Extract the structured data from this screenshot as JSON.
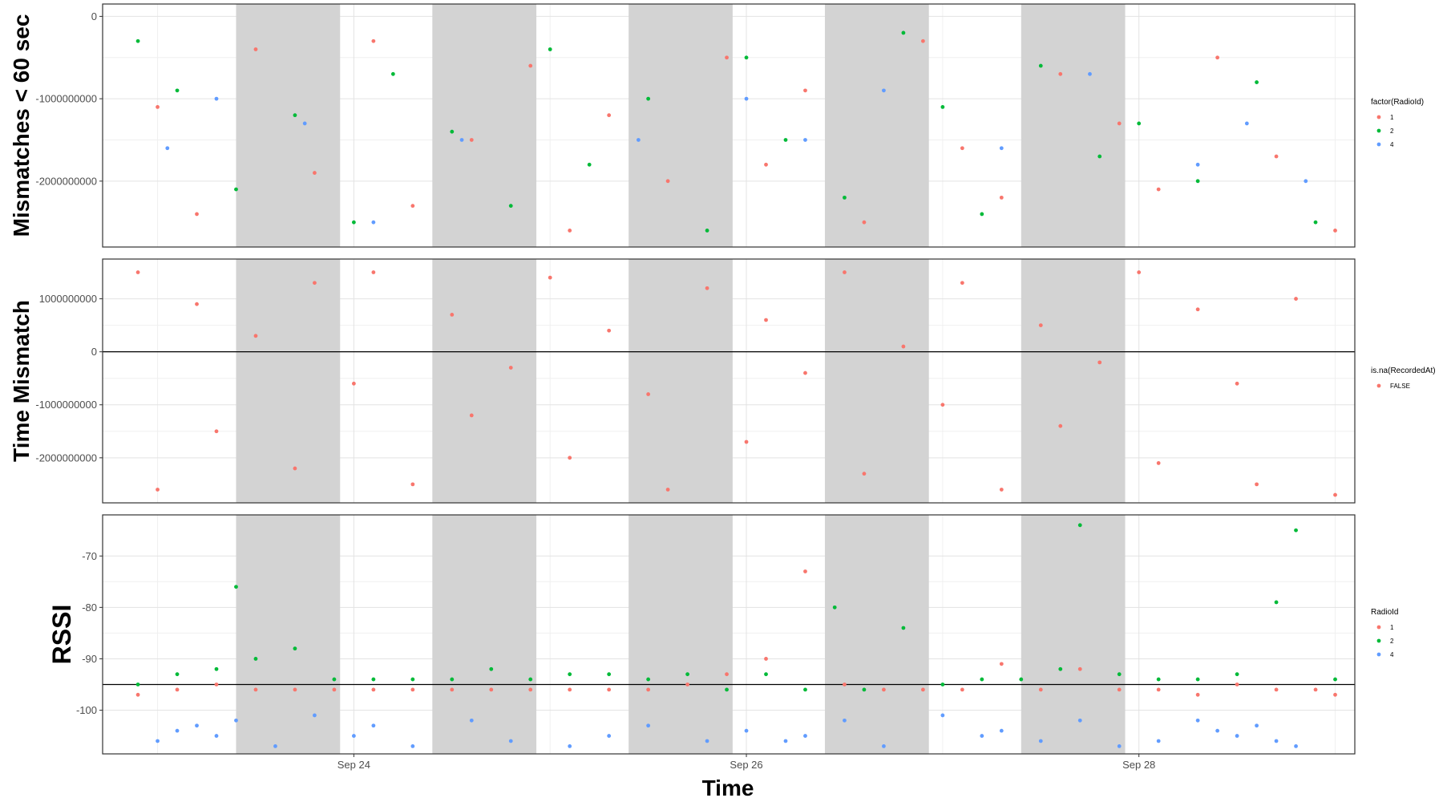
{
  "chart_data": {
    "type": "scatter",
    "xlabel": "Time",
    "x_ticks": [
      "Sep 24",
      "Sep 26",
      "Sep 28"
    ],
    "x_range_days": [
      22.72,
      29.1
    ],
    "night_bands": [
      [
        23.4,
        23.93
      ],
      [
        24.4,
        24.93
      ],
      [
        25.4,
        25.93
      ],
      [
        26.4,
        26.93
      ],
      [
        27.4,
        27.93
      ]
    ],
    "grid": true,
    "panels": [
      {
        "id": "mismatch60",
        "ylabel": "Mismatches < 60 sec",
        "ylim": [
          -2800000000,
          150000000
        ],
        "y_ticks": [
          0,
          -1000000000,
          -2000000000
        ],
        "y_tick_labels": [
          "0",
          "-1000000000",
          "-2000000000"
        ],
        "hline": null,
        "legend": {
          "title": "factor(RadioId)",
          "items": [
            {
              "label": "1",
              "color": "#F8766D"
            },
            {
              "label": "2",
              "color": "#00BA38"
            },
            {
              "label": "4",
              "color": "#619CFF"
            }
          ]
        },
        "series": [
          {
            "name": "1",
            "color": "#F8766D",
            "x": [
              23.0,
              23.2,
              23.5,
              23.8,
              24.1,
              24.3,
              24.6,
              24.9,
              25.1,
              25.3,
              25.6,
              25.9,
              26.1,
              26.3,
              26.6,
              26.9,
              27.1,
              27.3,
              27.6,
              27.9,
              28.1,
              28.4,
              28.7,
              29.0
            ],
            "y": [
              -1100000000,
              -2400000000,
              -400000000,
              -1900000000,
              -300000000,
              -2300000000,
              -1500000000,
              -600000000,
              -2600000000,
              -1200000000,
              -2000000000,
              -500000000,
              -1800000000,
              -900000000,
              -2500000000,
              -300000000,
              -1600000000,
              -2200000000,
              -700000000,
              -1300000000,
              -2100000000,
              -500000000,
              -1700000000,
              -2600000000
            ]
          },
          {
            "name": "2",
            "color": "#00BA38",
            "x": [
              22.9,
              23.1,
              23.4,
              23.7,
              24.0,
              24.2,
              24.5,
              24.8,
              25.0,
              25.2,
              25.5,
              25.8,
              26.0,
              26.2,
              26.5,
              26.8,
              27.0,
              27.2,
              27.5,
              27.8,
              28.0,
              28.3,
              28.6,
              28.9
            ],
            "y": [
              -300000000,
              -900000000,
              -2100000000,
              -1200000000,
              -2500000000,
              -700000000,
              -1400000000,
              -2300000000,
              -400000000,
              -1800000000,
              -1000000000,
              -2600000000,
              -500000000,
              -1500000000,
              -2200000000,
              -200000000,
              -1100000000,
              -2400000000,
              -600000000,
              -1700000000,
              -1300000000,
              -2000000000,
              -800000000,
              -2500000000
            ]
          },
          {
            "name": "4",
            "color": "#619CFF",
            "x": [
              23.05,
              23.3,
              23.75,
              24.1,
              24.55,
              25.45,
              26.0,
              26.3,
              26.7,
              27.3,
              27.75,
              28.3,
              28.55,
              28.85
            ],
            "y": [
              -1600000000,
              -1000000000,
              -1300000000,
              -2500000000,
              -1500000000,
              -1500000000,
              -1000000000,
              -1500000000,
              -900000000,
              -1600000000,
              -700000000,
              -1800000000,
              -1300000000,
              -2000000000
            ]
          }
        ]
      },
      {
        "id": "timemismatch",
        "ylabel": "Time Mismatch",
        "ylim": [
          -2850000000,
          1750000000
        ],
        "y_ticks": [
          1000000000,
          0,
          -1000000000,
          -2000000000
        ],
        "y_tick_labels": [
          "1000000000",
          "0",
          "-1000000000",
          "-2000000000"
        ],
        "hline": 0,
        "legend": {
          "title": "is.na(RecordedAt)",
          "items": [
            {
              "label": "FALSE",
              "color": "#F8766D"
            }
          ]
        },
        "series": [
          {
            "name": "FALSE",
            "color": "#F8766D",
            "x": [
              22.9,
              23.0,
              23.2,
              23.3,
              23.5,
              23.7,
              23.8,
              24.0,
              24.1,
              24.3,
              24.5,
              24.6,
              24.8,
              25.0,
              25.1,
              25.3,
              25.5,
              25.6,
              25.8,
              26.0,
              26.1,
              26.3,
              26.5,
              26.6,
              26.8,
              27.0,
              27.1,
              27.3,
              27.5,
              27.6,
              27.8,
              28.0,
              28.1,
              28.3,
              28.5,
              28.6,
              28.8,
              29.0
            ],
            "y": [
              1500000000,
              -2600000000,
              900000000,
              -1500000000,
              300000000,
              -2200000000,
              1300000000,
              -600000000,
              1500000000,
              -2500000000,
              700000000,
              -1200000000,
              -300000000,
              1400000000,
              -2000000000,
              400000000,
              -800000000,
              -2600000000,
              1200000000,
              -1700000000,
              600000000,
              -400000000,
              1500000000,
              -2300000000,
              100000000,
              -1000000000,
              1300000000,
              -2600000000,
              500000000,
              -1400000000,
              -200000000,
              1500000000,
              -2100000000,
              800000000,
              -600000000,
              -2500000000,
              1000000000,
              -2700000000
            ]
          }
        ]
      },
      {
        "id": "rssi",
        "ylabel": "RSSI",
        "ylim": [
          -108.5,
          -62
        ],
        "y_ticks": [
          -70,
          -80,
          -90,
          -100
        ],
        "y_tick_labels": [
          "-70",
          "-80",
          "-90",
          "-100"
        ],
        "hline": -95,
        "legend": {
          "title": "RadioId",
          "items": [
            {
              "label": "1",
              "color": "#F8766D"
            },
            {
              "label": "2",
              "color": "#00BA38"
            },
            {
              "label": "4",
              "color": "#619CFF"
            }
          ]
        },
        "series": [
          {
            "name": "1",
            "color": "#F8766D",
            "x": [
              22.9,
              23.1,
              23.3,
              23.5,
              23.7,
              23.9,
              24.1,
              24.3,
              24.5,
              24.7,
              24.9,
              25.1,
              25.3,
              25.5,
              25.7,
              25.9,
              26.1,
              26.3,
              26.5,
              26.7,
              26.9,
              27.1,
              27.3,
              27.5,
              27.7,
              27.9,
              28.1,
              28.3,
              28.5,
              28.7,
              28.9,
              29.0
            ],
            "y": [
              -97,
              -96,
              -95,
              -96,
              -96,
              -96,
              -96,
              -96,
              -96,
              -96,
              -96,
              -96,
              -96,
              -96,
              -95,
              -93,
              -90,
              -73,
              -95,
              -96,
              -96,
              -96,
              -91,
              -96,
              -92,
              -96,
              -96,
              -97,
              -95,
              -96,
              -96,
              -97
            ]
          },
          {
            "name": "2",
            "color": "#00BA38",
            "x": [
              22.9,
              23.1,
              23.3,
              23.4,
              23.5,
              23.7,
              23.9,
              24.1,
              24.3,
              24.5,
              24.7,
              24.9,
              25.1,
              25.3,
              25.5,
              25.7,
              25.9,
              26.1,
              26.3,
              26.45,
              26.6,
              26.8,
              27.0,
              27.2,
              27.4,
              27.6,
              27.7,
              27.9,
              28.1,
              28.3,
              28.5,
              28.7,
              28.8,
              29.0
            ],
            "y": [
              -95,
              -93,
              -92,
              -76,
              -90,
              -88,
              -94,
              -94,
              -94,
              -94,
              -92,
              -94,
              -93,
              -93,
              -94,
              -93,
              -96,
              -93,
              -96,
              -80,
              -96,
              -84,
              -95,
              -94,
              -94,
              -92,
              -64,
              -93,
              -94,
              -94,
              -93,
              -79,
              -65,
              -94
            ]
          },
          {
            "name": "4",
            "color": "#619CFF",
            "x": [
              23.0,
              23.1,
              23.2,
              23.3,
              23.4,
              23.6,
              23.8,
              24.0,
              24.1,
              24.3,
              24.6,
              24.8,
              25.1,
              25.3,
              25.5,
              25.8,
              26.0,
              26.2,
              26.3,
              26.5,
              26.7,
              27.0,
              27.2,
              27.3,
              27.5,
              27.7,
              27.9,
              28.1,
              28.3,
              28.4,
              28.5,
              28.6,
              28.7,
              28.8
            ],
            "y": [
              -106,
              -104,
              -103,
              -105,
              -102,
              -107,
              -101,
              -105,
              -103,
              -107,
              -102,
              -106,
              -107,
              -105,
              -103,
              -106,
              -104,
              -106,
              -105,
              -102,
              -107,
              -101,
              -105,
              -104,
              -106,
              -102,
              -107,
              -106,
              -102,
              -104,
              -105,
              -103,
              -106,
              -107
            ]
          }
        ]
      }
    ]
  }
}
